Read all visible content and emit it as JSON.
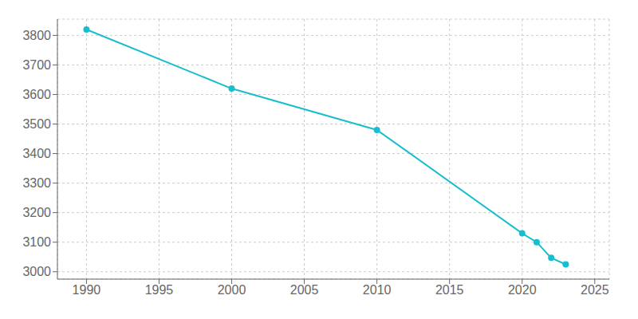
{
  "chart_data": {
    "type": "line",
    "x": [
      1990,
      2000,
      2010,
      2020,
      2021,
      2022,
      2023
    ],
    "values": [
      3820,
      3620,
      3480,
      3130,
      3100,
      3047,
      3025
    ],
    "color": "#17becf",
    "marker": "circle",
    "xlim": [
      1988,
      2026
    ],
    "ylim": [
      2975,
      3855
    ],
    "xticks": [
      1990,
      1995,
      2000,
      2005,
      2010,
      2015,
      2020,
      2025
    ],
    "yticks": [
      3000,
      3100,
      3200,
      3300,
      3400,
      3500,
      3600,
      3700,
      3800
    ],
    "grid": true
  }
}
